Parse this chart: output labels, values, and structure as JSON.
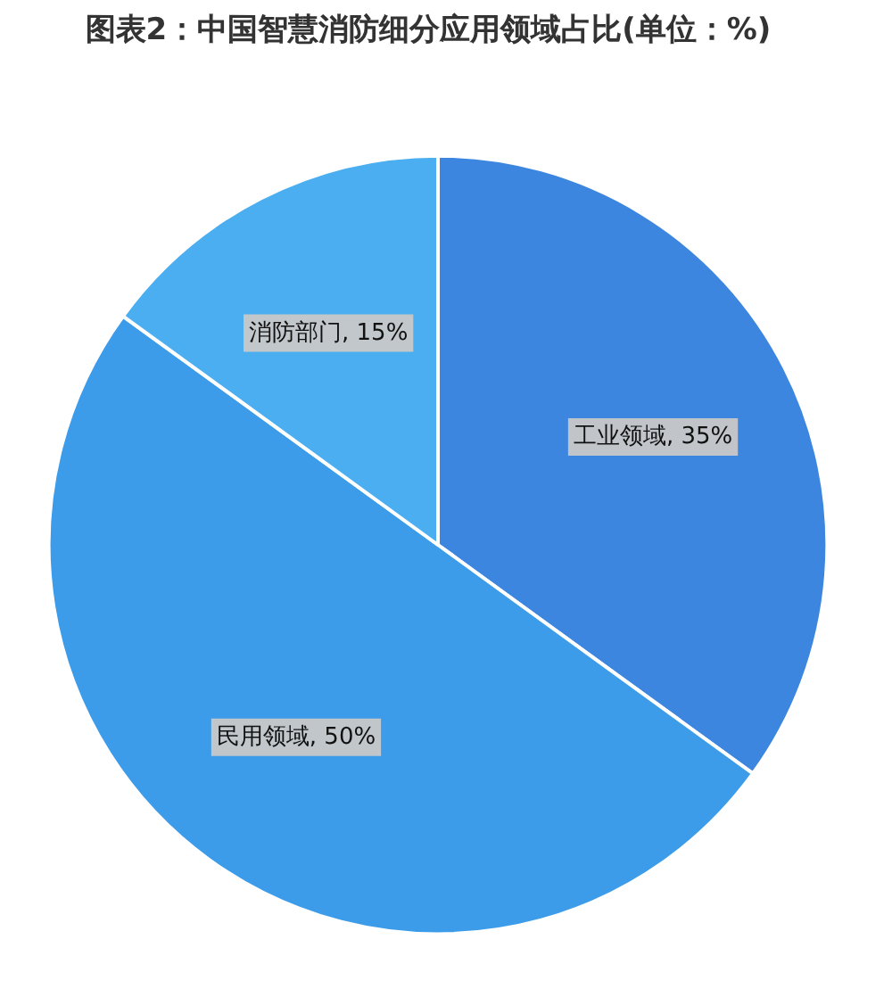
{
  "chart_data": {
    "type": "pie",
    "title": "图表2：中国智慧消防细分应用领域占比(单位：%)",
    "categories": [
      "工业领域",
      "民用领域",
      "消防部门"
    ],
    "values": [
      35,
      50,
      15
    ],
    "value_labels": [
      "35%",
      "50%",
      "15%"
    ],
    "colors": [
      "#3d86e0",
      "#3c9cea",
      "#4aaef0"
    ],
    "legend": false
  }
}
